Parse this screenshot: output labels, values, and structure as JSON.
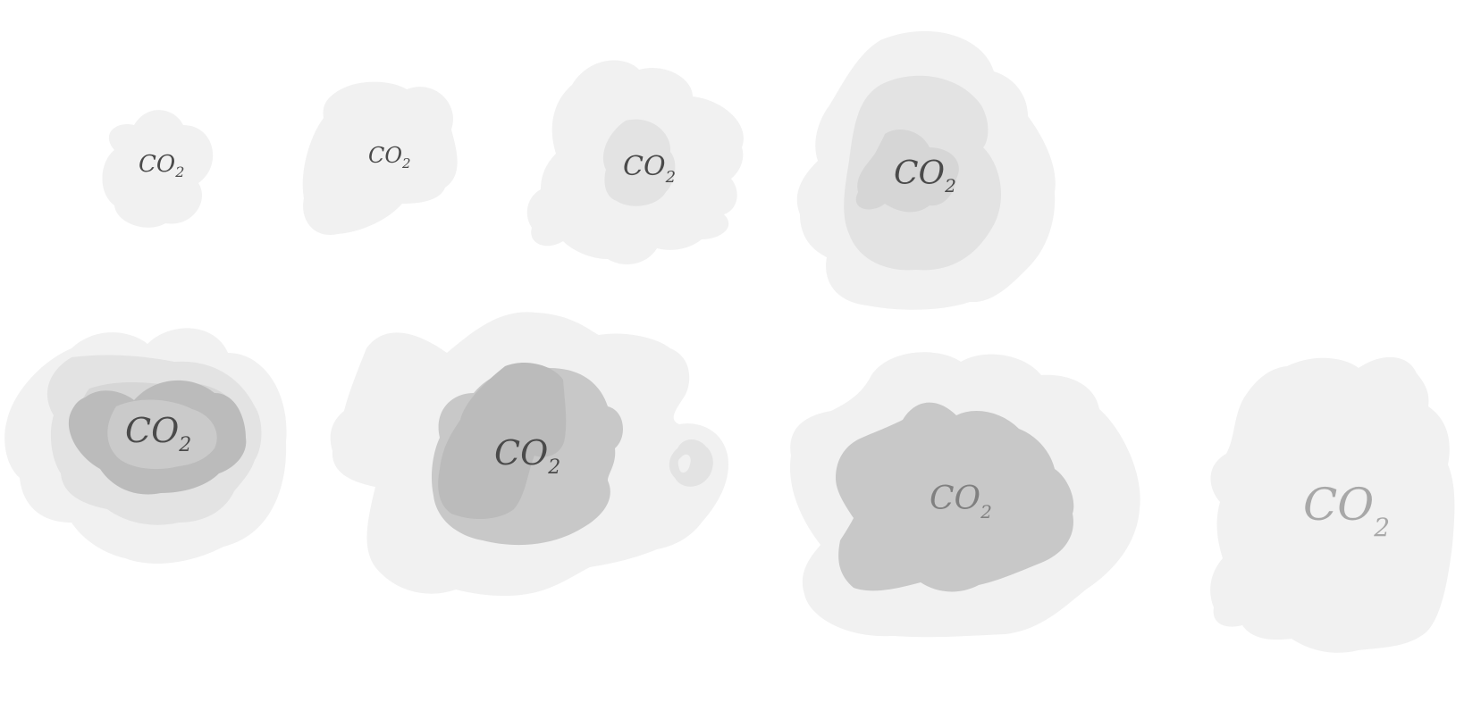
{
  "colors": {
    "background": "#ffffff",
    "cloud_light": "#f1f1f1",
    "cloud_mid": "#e3e3e3",
    "cloud_mid2": "#d6d6d6",
    "cloud_dark": "#c8c8c8",
    "cloud_darker": "#bbbbbb",
    "text_dark": "#4a4a4a",
    "text_mid": "#808080",
    "text_light": "#a8a8a8"
  },
  "clouds": [
    {
      "label_main": "CO",
      "label_sub": "2"
    },
    {
      "label_main": "CO",
      "label_sub": "2"
    },
    {
      "label_main": "CO",
      "label_sub": "2"
    },
    {
      "label_main": "CO",
      "label_sub": "2"
    },
    {
      "label_main": "CO",
      "label_sub": "2"
    },
    {
      "label_main": "CO",
      "label_sub": "2"
    },
    {
      "label_main": "CO",
      "label_sub": "2"
    },
    {
      "label_main": "CO",
      "label_sub": "2"
    }
  ]
}
